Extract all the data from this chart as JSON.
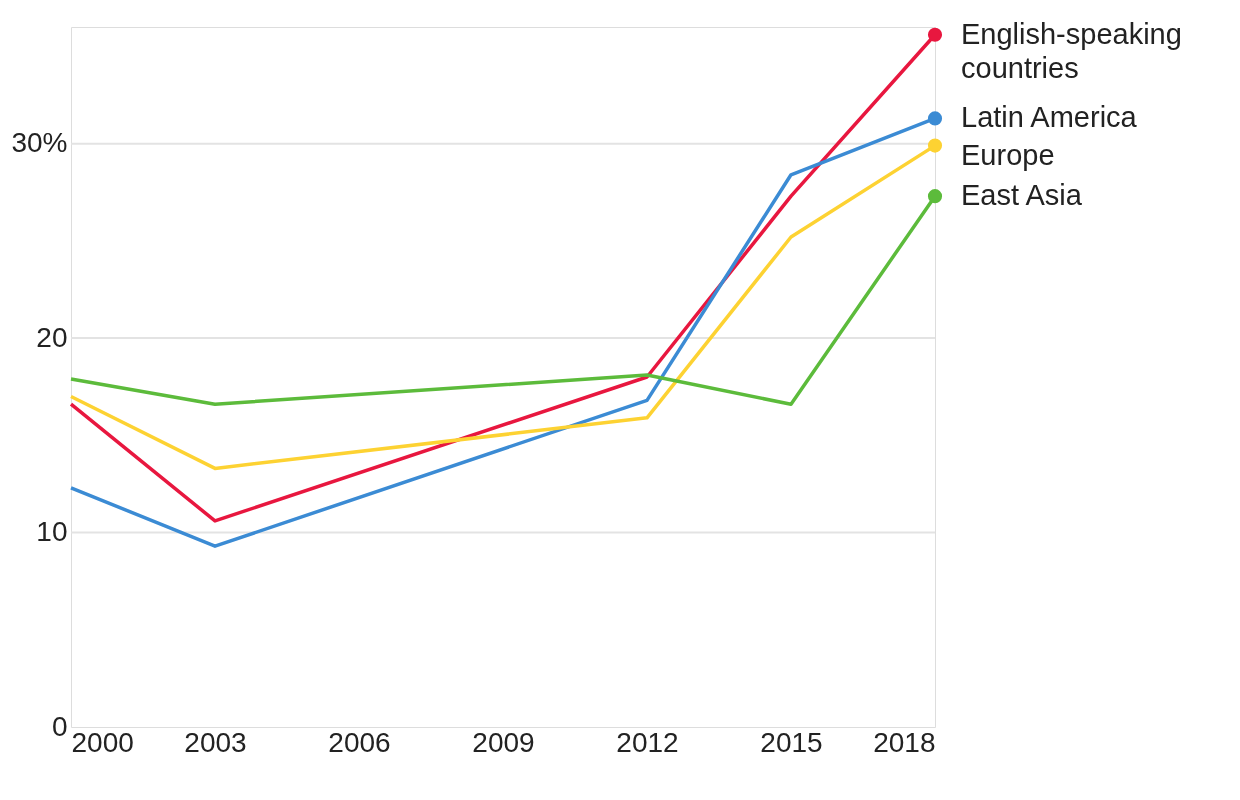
{
  "chart_data": {
    "type": "line",
    "x": [
      2000,
      2003,
      2012,
      2015,
      2018
    ],
    "series": [
      {
        "name": "English-speaking countries",
        "color": "#e8173f",
        "values": [
          16.6,
          10.6,
          18.0,
          27.3,
          35.6
        ]
      },
      {
        "name": "Latin America",
        "color": "#3b8bd4",
        "values": [
          12.3,
          9.3,
          16.8,
          28.4,
          31.3
        ]
      },
      {
        "name": "Europe",
        "color": "#fdd232",
        "values": [
          17.0,
          13.3,
          15.9,
          25.2,
          29.9
        ]
      },
      {
        "name": "East Asia",
        "color": "#5cbb3b",
        "values": [
          17.9,
          16.6,
          18.1,
          16.6,
          27.3
        ]
      }
    ],
    "xlim": [
      2000,
      2018
    ],
    "xticks": [
      2000,
      2003,
      2006,
      2009,
      2012,
      2015,
      2018
    ],
    "ylim": [
      0,
      36
    ],
    "yticks": [
      0,
      10,
      20,
      {
        "value": 30,
        "label": "30%"
      }
    ],
    "grid": "y",
    "legend": "right",
    "line_style": "solid",
    "marker": "none"
  }
}
